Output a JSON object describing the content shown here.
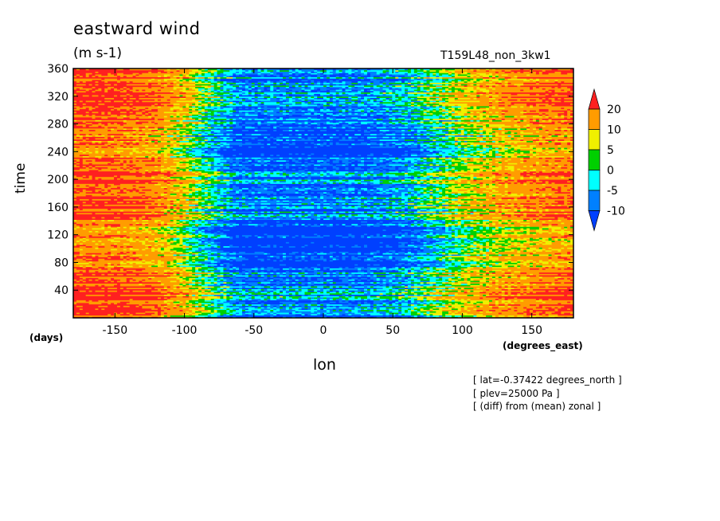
{
  "header": {
    "title": "eastward wind",
    "units": "(m s-1)",
    "run": "T159L48_non_3kw1"
  },
  "axes": {
    "ylabel": "time",
    "yunit": "(days)",
    "xlabel": "lon",
    "xunit": "(degrees_east)"
  },
  "notes": [
    "[ lat=-0.37422 degrees_north ]",
    "[ plev=25000 Pa ]",
    "[ (diff) from (mean) zonal ]"
  ],
  "colorbar": {
    "labels": [
      "20",
      "10",
      "5",
      "0",
      "-5",
      "-10"
    ],
    "colors": [
      "#ff2020",
      "#ff9c00",
      "#f0f000",
      "#00d000",
      "#00ffff",
      "#0080ff",
      "#0040ff"
    ]
  },
  "chart_data": {
    "type": "heatmap",
    "title": "eastward wind",
    "subtitle": "(m s-1)",
    "xlabel": "lon",
    "ylabel": "time",
    "xlim": [
      -180,
      180
    ],
    "ylim": [
      0,
      360
    ],
    "x_ticks": [
      -150,
      -100,
      -50,
      0,
      50,
      100,
      150
    ],
    "y_ticks": [
      40,
      80,
      120,
      160,
      200,
      240,
      280,
      320,
      360
    ],
    "levels": [
      -10,
      -5,
      0,
      5,
      10,
      20
    ],
    "colors": [
      "#0040ff",
      "#0080ff",
      "#00ffff",
      "#00d000",
      "#f0f000",
      "#ff9c00",
      "#ff2020"
    ],
    "approx_pattern": {
      "lon": [
        -180,
        -150,
        -120,
        -100,
        -85,
        -60,
        -30,
        0,
        30,
        60,
        80,
        100,
        130,
        160,
        180
      ],
      "mean_value": [
        20,
        20,
        16,
        8,
        0,
        -10,
        -10,
        -10,
        -10,
        -6,
        0,
        6,
        12,
        16,
        18
      ]
    }
  }
}
